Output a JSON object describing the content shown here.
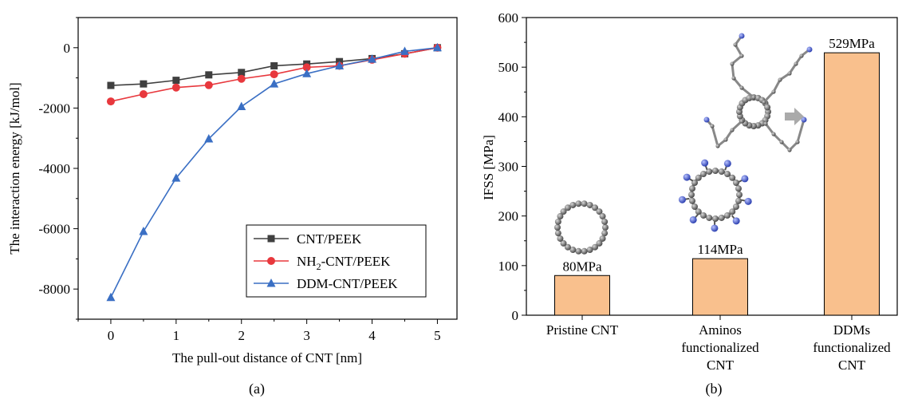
{
  "chart_data": [
    {
      "type": "line",
      "panel_label": "(a)",
      "xlabel": "The pull-out distance of CNT [nm]",
      "ylabel": "The interaction energy [kJ/mol]",
      "xlim": [
        -0.5,
        5.3
      ],
      "ylim": [
        -9000,
        1000
      ],
      "xticks": [
        0,
        1,
        2,
        3,
        4,
        5
      ],
      "yticks": [
        0,
        -2000,
        -4000,
        -6000,
        -8000
      ],
      "ytick_labels": [
        "0",
        "-2000",
        "-4000",
        "-6000",
        "-8000"
      ],
      "legend_position": "lower-right",
      "x": [
        0,
        0.5,
        1,
        1.5,
        2,
        2.5,
        3,
        3.5,
        4,
        4.5,
        5
      ],
      "series": [
        {
          "name": "CNT/PEEK",
          "marker": "square",
          "color": "#404040",
          "values": [
            -1250,
            -1200,
            -1080,
            -900,
            -820,
            -600,
            -540,
            -460,
            -360,
            -200,
            0
          ]
        },
        {
          "name": "NH2-CNT/PEEK",
          "label_base": "NH",
          "label_sub": "2",
          "label_rest": "-CNT/PEEK",
          "marker": "circle",
          "color": "#e8383d",
          "values": [
            -1780,
            -1540,
            -1320,
            -1240,
            -1030,
            -880,
            -650,
            -600,
            -400,
            -200,
            0
          ]
        },
        {
          "name": "DDM-CNT/PEEK",
          "marker": "triangle",
          "color": "#3a6fc4",
          "values": [
            -8280,
            -6090,
            -4320,
            -3020,
            -1950,
            -1200,
            -860,
            -600,
            -380,
            -120,
            0
          ]
        }
      ]
    },
    {
      "type": "bar",
      "panel_label": "(b)",
      "ylabel": "IFSS [MPa]",
      "ylim": [
        0,
        600
      ],
      "yticks": [
        0,
        100,
        200,
        300,
        400,
        500,
        600
      ],
      "bar_color": "#f9c08d",
      "categories": [
        [
          "Pristine CNT"
        ],
        [
          "Aminos",
          "functionalized",
          "CNT"
        ],
        [
          "DDMs",
          "functionalized",
          "CNT"
        ]
      ],
      "values": [
        80,
        114,
        529
      ],
      "value_labels": [
        "80MPa",
        "114MPa",
        "529MPa"
      ]
    }
  ]
}
